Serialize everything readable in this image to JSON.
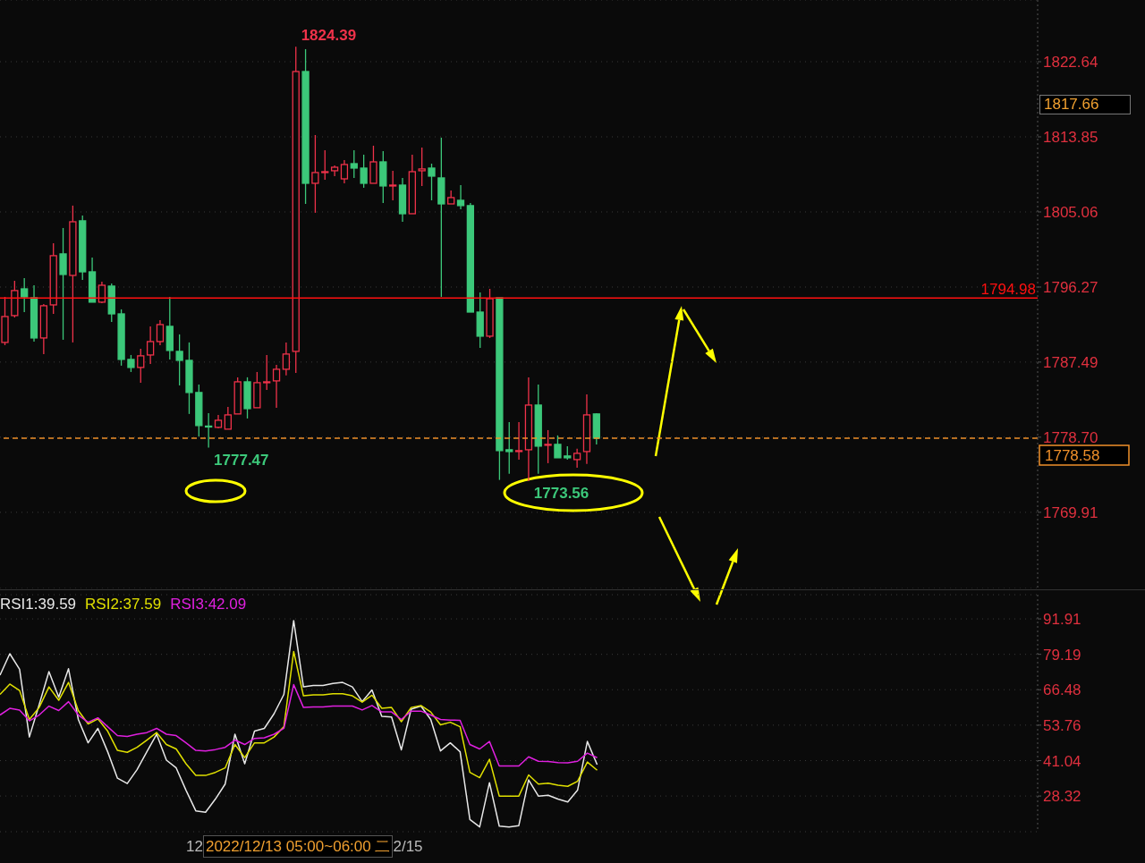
{
  "chart_data": [
    {
      "type": "candlestick",
      "categories": [
        null,
        null,
        null,
        null,
        null,
        null,
        null,
        null,
        null,
        null,
        null,
        null,
        null,
        null,
        null,
        null,
        null,
        null,
        null,
        null,
        null,
        null,
        null,
        null,
        null,
        null,
        null,
        null,
        null,
        null,
        null,
        null,
        null,
        null,
        null,
        null,
        null,
        null,
        null,
        null,
        null,
        null,
        null,
        null,
        null,
        null,
        null,
        null,
        null,
        null,
        null,
        null,
        null,
        null,
        null,
        null,
        null,
        null,
        null,
        null,
        null,
        null,
        null,
        null,
        null,
        null,
        null,
        null,
        null,
        null,
        null,
        null,
        null,
        null,
        null,
        null,
        null,
        null,
        null,
        null,
        null,
        null,
        null,
        null,
        null,
        null,
        null,
        null,
        null,
        null,
        null,
        null,
        null,
        null,
        null,
        null,
        null,
        null,
        null,
        null,
        null,
        null,
        null,
        null,
        null,
        null,
        null
      ],
      "ohlc": [
        [
          1789.79,
          1795.12,
          1789.47,
          1792.82
        ],
        [
          1792.93,
          1797.01,
          1792.72,
          1795.86
        ],
        [
          1796.06,
          1797.32,
          1793.34,
          1795.12
        ],
        [
          1795.02,
          1796.48,
          1789.89,
          1790.31
        ],
        [
          1790.31,
          1794.29,
          1788.43,
          1794.08
        ],
        [
          1794.18,
          1801.4,
          1793.13,
          1799.94
        ],
        [
          1800.15,
          1803.18,
          1790.1,
          1797.74
        ],
        [
          1797.63,
          1805.8,
          1789.79,
          1803.91
        ],
        [
          1804.02,
          1804.64,
          1797.11,
          1798.05
        ],
        [
          1798.05,
          1799.73,
          1794.5,
          1794.5
        ],
        [
          1794.5,
          1796.9,
          1794.39,
          1796.48
        ],
        [
          1796.38,
          1796.69,
          1792.19,
          1793.13
        ],
        [
          1793.13,
          1793.66,
          1787.07,
          1787.8
        ],
        [
          1787.8,
          1788.32,
          1786.33,
          1786.86
        ],
        [
          1786.86,
          1789.05,
          1785.08,
          1788.22
        ],
        [
          1788.32,
          1791.67,
          1787.28,
          1789.89
        ],
        [
          1789.89,
          1792.4,
          1789.47,
          1791.88
        ],
        [
          1791.67,
          1795.12,
          1787.8,
          1788.85
        ],
        [
          1788.74,
          1790.73,
          1784.76,
          1787.69
        ],
        [
          1787.69,
          1789.79,
          1781.42,
          1783.93
        ],
        [
          1783.93,
          1784.87,
          1778.8,
          1780.06
        ],
        [
          1780.0,
          1781.52,
          1777.47,
          1779.9
        ],
        [
          1779.85,
          1781.31,
          1779.74,
          1780.68
        ],
        [
          1779.64,
          1782.25,
          1779.64,
          1781.31
        ],
        [
          1781.42,
          1785.71,
          1781.42,
          1785.18
        ],
        [
          1785.18,
          1785.71,
          1780.89,
          1782.04
        ],
        [
          1782.15,
          1786.33,
          1782.15,
          1785.08
        ],
        [
          1785.08,
          1788.32,
          1784.24,
          1785.18
        ],
        [
          1785.29,
          1787.17,
          1782.15,
          1786.65
        ],
        [
          1786.65,
          1789.79,
          1785.92,
          1788.43
        ],
        [
          1788.74,
          1824.39,
          1786.23,
          1821.49
        ],
        [
          1821.49,
          1824.11,
          1806.0,
          1808.41
        ],
        [
          1808.41,
          1814.06,
          1804.96,
          1809.67
        ],
        [
          1809.72,
          1812.28,
          1808.83,
          1809.77
        ],
        [
          1809.88,
          1810.5,
          1809.25,
          1810.29
        ],
        [
          1808.93,
          1811.13,
          1808.41,
          1810.61
        ],
        [
          1810.71,
          1812.28,
          1809.04,
          1810.19
        ],
        [
          1810.19,
          1811.76,
          1807.89,
          1808.41
        ],
        [
          1808.41,
          1812.81,
          1808.41,
          1810.92
        ],
        [
          1810.92,
          1812.18,
          1806.11,
          1808.1
        ],
        [
          1808.1,
          1809.88,
          1806.42,
          1808.2
        ],
        [
          1808.2,
          1809.04,
          1803.91,
          1804.85
        ],
        [
          1804.85,
          1811.76,
          1804.85,
          1809.77
        ],
        [
          1809.88,
          1812.6,
          1808.1,
          1810.09
        ],
        [
          1810.19,
          1810.71,
          1806.42,
          1809.25
        ],
        [
          1809.04,
          1813.75,
          1795.12,
          1806.0
        ],
        [
          1806.0,
          1807.57,
          1806.0,
          1806.74
        ],
        [
          1806.42,
          1808.2,
          1805.38,
          1805.8
        ],
        [
          1805.8,
          1806.11,
          1793.34,
          1793.34
        ],
        [
          1793.34,
          1795.65,
          1789.16,
          1790.52
        ],
        [
          1790.52,
          1796.06,
          1790.31,
          1794.91
        ],
        [
          1795.02,
          1795.02,
          1773.7,
          1777.13
        ],
        [
          1777.23,
          1780.47,
          1774.41,
          1777.02
        ],
        [
          1777.02,
          1780.47,
          1776.08,
          1777.13
        ],
        [
          1777.23,
          1785.71,
          1773.56,
          1782.46
        ],
        [
          1782.46,
          1784.87,
          1774.41,
          1777.65
        ],
        [
          1777.81,
          1779.53,
          1775.66,
          1777.86
        ],
        [
          1777.86,
          1778.91,
          1776.29,
          1776.29
        ],
        [
          1776.5,
          1777.65,
          1776.08,
          1776.29
        ],
        [
          1776.08,
          1777.34,
          1775.14,
          1776.81
        ],
        [
          1777.02,
          1783.72,
          1775.56,
          1781.31
        ],
        [
          1781.42,
          1781.52,
          1777.86,
          1778.58
        ],
        null,
        null,
        null,
        null,
        null,
        null,
        null,
        null,
        null,
        null,
        null,
        null,
        null,
        null,
        null,
        null,
        null,
        null,
        null,
        null,
        null,
        null,
        null,
        null,
        null,
        null,
        null,
        null,
        null,
        null,
        null,
        null,
        null,
        null,
        null,
        null,
        null,
        null,
        null,
        null,
        null,
        null,
        null,
        null,
        null
      ],
      "ylim": [
        1761.0,
        1829.86
      ],
      "yticks": [
        1769.91,
        {
          "value": 1778.7,
          "label": "1778.70"
        },
        1787.49,
        1796.27,
        1805.06,
        1813.85,
        1822.64
      ],
      "grid": "y",
      "tick_labels": "y",
      "ref_lines": [
        {
          "axis": "y",
          "value": 1794.98,
          "label": "1794.98",
          "color": "#ff1010",
          "line_style": "solid"
        },
        {
          "axis": "y",
          "value": 1778.58,
          "label": "1778.58",
          "color": "#f0902a",
          "line_style": "dashed"
        }
      ],
      "annotations": [
        "1824.39",
        "1777.47",
        "1773.56",
        "1817.66"
      ]
    },
    {
      "type": "line",
      "categories": [
        null,
        null,
        null,
        null,
        null,
        null,
        null,
        null,
        null,
        null,
        null,
        null,
        null,
        null,
        null,
        null,
        null,
        null,
        null,
        null,
        null,
        null,
        null,
        null,
        null,
        null,
        null,
        null,
        null,
        null,
        null,
        null,
        null,
        null,
        null,
        null,
        null,
        null,
        null,
        null,
        null,
        null,
        null,
        null,
        null,
        null,
        null,
        null,
        null,
        null,
        null,
        null,
        null,
        null,
        null,
        null,
        null,
        null,
        null,
        null,
        null,
        null,
        null,
        null,
        null,
        null,
        null,
        null,
        null,
        null,
        null,
        null,
        null,
        null,
        null,
        null,
        null,
        null,
        null,
        null,
        null,
        null,
        null,
        null,
        null,
        null,
        null,
        null,
        null,
        null,
        null,
        null,
        null,
        null,
        null,
        null,
        null,
        null,
        null,
        null,
        null,
        null,
        null,
        null,
        null,
        null,
        null
      ],
      "series": [
        {
          "name": "RSI1:39.59",
          "color": "#e8e8e8",
          "values": [
            71.7,
            79.4,
            73.8,
            49.5,
            61.1,
            73.0,
            63.8,
            74.0,
            55.8,
            47.4,
            52.6,
            44.2,
            34.7,
            32.8,
            37.8,
            44.2,
            50.5,
            41.2,
            38.4,
            30.4,
            23.0,
            22.5,
            27.2,
            32.6,
            50.5,
            39.9,
            51.6,
            52.6,
            57.9,
            64.8,
            91.3,
            67.5,
            68.0,
            68.0,
            68.7,
            69.1,
            67.5,
            62.2,
            66.4,
            56.9,
            56.7,
            44.9,
            59.5,
            60.6,
            55.8,
            44.5,
            47.4,
            44.2,
            19.9,
            17.2,
            33.1,
            17.5,
            17.2,
            17.7,
            34.1,
            28.3,
            28.6,
            27.2,
            26.2,
            30.4,
            47.9,
            39.59,
            null,
            null,
            null,
            null,
            null,
            null,
            null,
            null,
            null,
            null,
            null,
            null,
            null,
            null,
            null,
            null,
            null,
            null,
            null,
            null,
            null,
            null,
            null,
            null,
            null,
            null,
            null,
            null,
            null,
            null,
            null,
            null,
            null,
            null,
            null,
            null,
            null,
            null,
            null,
            null,
            null,
            null,
            null,
            null,
            null
          ]
        },
        {
          "name": "RSI2:37.59",
          "color": "#e0e000",
          "values": [
            64.8,
            68.5,
            66.2,
            55.8,
            60.1,
            67.5,
            62.7,
            69.1,
            59.0,
            54.2,
            56.0,
            51.6,
            44.7,
            44.0,
            45.8,
            48.4,
            51.1,
            46.8,
            45.2,
            39.9,
            35.7,
            35.7,
            36.8,
            38.4,
            46.8,
            42.1,
            47.4,
            47.4,
            49.5,
            53.2,
            80.2,
            64.3,
            64.6,
            64.6,
            65.0,
            65.0,
            64.3,
            62.0,
            64.5,
            59.8,
            60.1,
            55.0,
            60.1,
            60.8,
            58.5,
            53.9,
            54.8,
            53.2,
            36.8,
            34.9,
            41.5,
            28.3,
            28.3,
            28.3,
            35.9,
            32.6,
            32.9,
            32.2,
            31.8,
            33.6,
            40.5,
            37.59,
            null,
            null,
            null,
            null,
            null,
            null,
            null,
            null,
            null,
            null,
            null,
            null,
            null,
            null,
            null,
            null,
            null,
            null,
            null,
            null,
            null,
            null,
            null,
            null,
            null,
            null,
            null,
            null,
            null,
            null,
            null,
            null,
            null,
            null,
            null,
            null,
            null,
            null,
            null,
            null,
            null,
            null,
            null,
            null,
            null
          ]
        },
        {
          "name": "RSI3:42.09",
          "color": "#e020e0",
          "values": [
            57.4,
            59.8,
            59.2,
            55.3,
            57.4,
            60.6,
            59.0,
            62.2,
            57.4,
            54.8,
            56.4,
            53.2,
            50.0,
            49.7,
            50.5,
            51.1,
            52.6,
            50.5,
            50.0,
            47.4,
            44.7,
            44.5,
            45.0,
            45.8,
            48.4,
            46.8,
            49.0,
            49.2,
            50.5,
            52.6,
            68.3,
            60.1,
            60.3,
            60.3,
            60.6,
            60.6,
            60.6,
            59.2,
            60.8,
            58.5,
            58.5,
            55.8,
            58.8,
            58.8,
            57.4,
            55.8,
            55.6,
            55.5,
            46.8,
            45.2,
            47.9,
            39.1,
            39.1,
            39.1,
            42.4,
            40.8,
            40.7,
            40.3,
            40.2,
            40.8,
            43.7,
            42.09,
            null,
            null,
            null,
            null,
            null,
            null,
            null,
            null,
            null,
            null,
            null,
            null,
            null,
            null,
            null,
            null,
            null,
            null,
            null,
            null,
            null,
            null,
            null,
            null,
            null,
            null,
            null,
            null,
            null,
            null,
            null,
            null,
            null,
            null,
            null,
            null,
            null,
            null,
            null,
            null,
            null,
            null,
            null,
            null,
            null
          ]
        }
      ],
      "ylim": [
        15.5,
        100.6
      ],
      "yticks": [
        28.32,
        41.04,
        53.76,
        66.48,
        79.19,
        91.91
      ],
      "grid": "y",
      "tick_labels": "y",
      "legend": "top left",
      "annotations": [
        "12",
        "2022/12/13 05:00~06:00 二",
        "2/15"
      ]
    }
  ]
}
